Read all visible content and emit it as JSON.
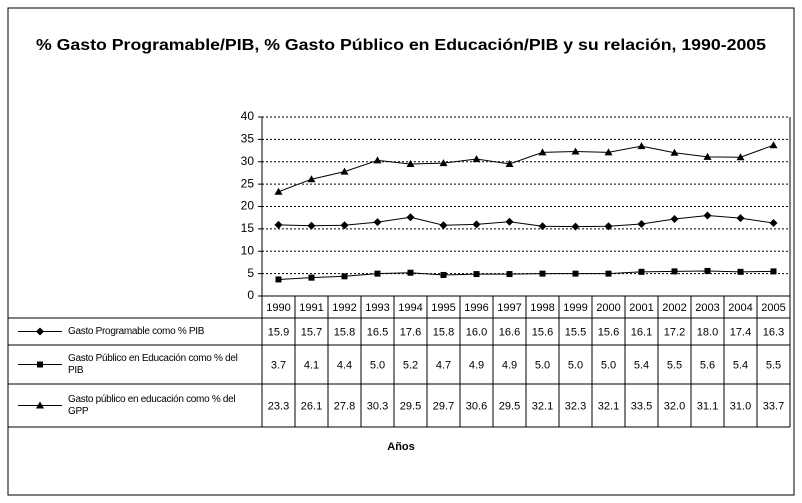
{
  "chart_data": {
    "type": "line",
    "title": "% Gasto Programable/PIB, % Gasto Público en Educación/PIB y su relación, 1990-2005",
    "x_label": "Años",
    "categories": [
      "1990",
      "1991",
      "1992",
      "1993",
      "1994",
      "1995",
      "1996",
      "1997",
      "1998",
      "1999",
      "2000",
      "2001",
      "2002",
      "2003",
      "2004",
      "2005"
    ],
    "series": [
      {
        "name": "Gasto Programable como % PIB",
        "color": "#000000",
        "marker": "diamond",
        "values": [
          15.9,
          15.7,
          15.8,
          16.5,
          17.6,
          15.8,
          16.0,
          16.6,
          15.6,
          15.5,
          15.6,
          16.1,
          17.2,
          18.0,
          17.4,
          16.3
        ],
        "value_labels": [
          "15.9",
          "15.7",
          "15.8",
          "16.5",
          "17.6",
          "15.8",
          "16.0",
          "16.6",
          "15.6",
          "15.5",
          "15.6",
          "16.1",
          "17.2",
          "18.0",
          "17.4",
          "16.3"
        ]
      },
      {
        "name": "Gasto Público en Educación como % del PIB",
        "color": "#000000",
        "marker": "square",
        "values": [
          3.7,
          4.1,
          4.4,
          5.0,
          5.2,
          4.7,
          4.9,
          4.9,
          5.0,
          5.0,
          5.0,
          5.4,
          5.5,
          5.6,
          5.4,
          5.5
        ],
        "value_labels": [
          "3.7",
          "4.1",
          "4.4",
          "5.0",
          "5.2",
          "4.7",
          "4.9",
          "4.9",
          "5.0",
          "5.0",
          "5.0",
          "5.4",
          "5.5",
          "5.6",
          "5.4",
          "5.5"
        ]
      },
      {
        "name": "Gasto público en educación como % del GPP",
        "color": "#000000",
        "marker": "triangle",
        "values": [
          23.3,
          26.1,
          27.8,
          30.3,
          29.5,
          29.7,
          30.6,
          29.5,
          32.1,
          32.3,
          32.1,
          33.5,
          32.0,
          31.1,
          31.0,
          33.7
        ],
        "value_labels": [
          "23.3",
          "26.1",
          "27.8",
          "30.3",
          "29.5",
          "29.7",
          "30.6",
          "29.5",
          "32.1",
          "32.3",
          "32.1",
          "33.5",
          "32.0",
          "31.1",
          "31.0",
          "33.7"
        ]
      }
    ],
    "ylim": [
      0,
      40
    ],
    "yticks": [
      0,
      5,
      10,
      15,
      20,
      25,
      30,
      35,
      40
    ],
    "grid": true
  }
}
